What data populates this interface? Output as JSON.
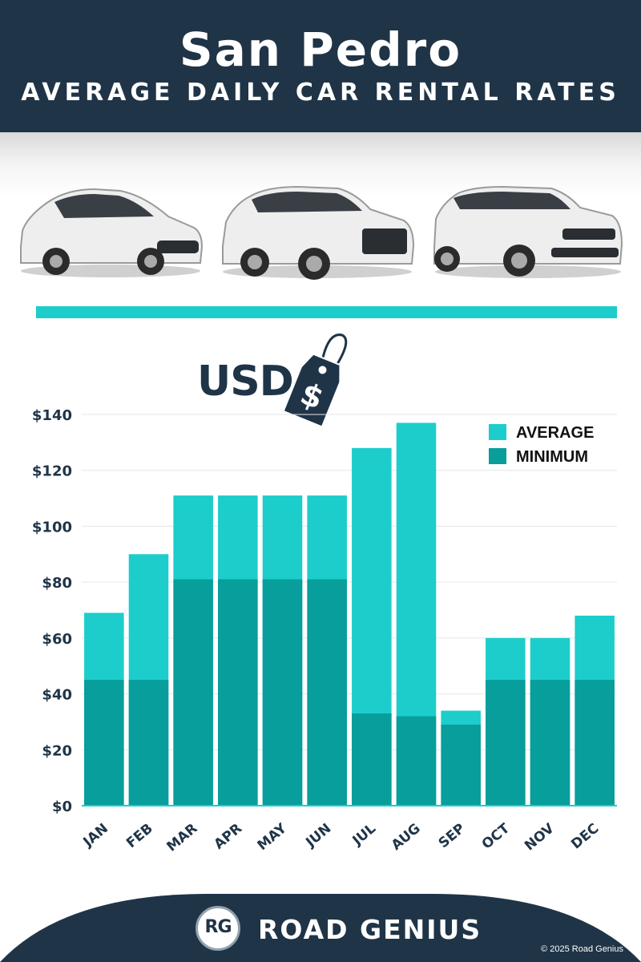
{
  "header": {
    "title": "San Pedro",
    "subtitle": "AVERAGE DAILY CAR RENTAL RATES"
  },
  "currency_label": "USD",
  "currency_symbol": "$",
  "colors": {
    "navy": "#1f3447",
    "average": "#1ccdcb",
    "minimum": "#079e9b"
  },
  "icons": [
    "hatchback-car-icon",
    "suv-car-icon",
    "luxury-suv-car-icon",
    "price-tag-icon"
  ],
  "chart_data": {
    "type": "bar",
    "stacked": "overlay",
    "categories": [
      "JAN",
      "FEB",
      "MAR",
      "APR",
      "MAY",
      "JUN",
      "JUL",
      "AUG",
      "SEP",
      "OCT",
      "NOV",
      "DEC"
    ],
    "series": [
      {
        "name": "AVERAGE",
        "values": [
          69,
          90,
          111,
          111,
          111,
          111,
          128,
          137,
          34,
          60,
          60,
          68
        ]
      },
      {
        "name": "MINIMUM",
        "values": [
          45,
          45,
          81,
          81,
          81,
          81,
          33,
          32,
          29,
          45,
          45,
          45
        ]
      }
    ],
    "yticks": [
      "$0",
      "$20",
      "$40",
      "$60",
      "$80",
      "$100",
      "$120",
      "$140"
    ],
    "ylim": [
      0,
      140
    ],
    "grid": true,
    "legend": "top-right"
  },
  "footer": {
    "logo": "RG",
    "brand": "ROAD GENIUS",
    "copyright": "© 2025 Road Genius"
  }
}
